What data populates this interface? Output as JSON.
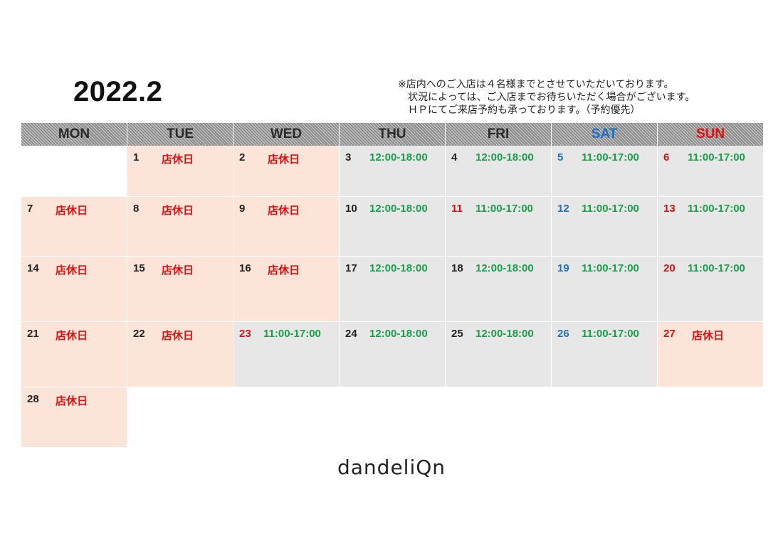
{
  "title": "2022.2",
  "notice": {
    "line1": "※店内へのご入店は４名様までとさせていただいております。",
    "line2": "　状況によっては、ご入店までお待ちいただく場合がございます。",
    "line3": "　ＨＰにてご来店予約も承っております。（予約優先）"
  },
  "weekdays": [
    "MON",
    "TUE",
    "WED",
    "THU",
    "FRI",
    "SAT",
    "SUN"
  ],
  "labels": {
    "closed": "店休日",
    "weekday_hours": "12:00-18:00",
    "weekend_hours": "11:00-17:00"
  },
  "weeks": [
    [
      {
        "day": "",
        "status": "empty",
        "text": ""
      },
      {
        "day": "1",
        "status": "closed",
        "text": "店休日",
        "color": "black"
      },
      {
        "day": "2",
        "status": "closed",
        "text": "店休日",
        "color": "black"
      },
      {
        "day": "3",
        "status": "open",
        "text": "12:00-18:00",
        "color": "black"
      },
      {
        "day": "4",
        "status": "open",
        "text": "12:00-18:00",
        "color": "black"
      },
      {
        "day": "5",
        "status": "open",
        "text": "11:00-17:00",
        "color": "blue"
      },
      {
        "day": "6",
        "status": "open",
        "text": "11:00-17:00",
        "color": "red"
      }
    ],
    [
      {
        "day": "7",
        "status": "closed",
        "text": "店休日",
        "color": "black"
      },
      {
        "day": "8",
        "status": "closed",
        "text": "店休日",
        "color": "black"
      },
      {
        "day": "9",
        "status": "closed",
        "text": "店休日",
        "color": "black"
      },
      {
        "day": "10",
        "status": "open",
        "text": "12:00-18:00",
        "color": "black"
      },
      {
        "day": "11",
        "status": "open",
        "text": "11:00-17:00",
        "color": "red"
      },
      {
        "day": "12",
        "status": "open",
        "text": "11:00-17:00",
        "color": "blue"
      },
      {
        "day": "13",
        "status": "open",
        "text": "11:00-17:00",
        "color": "red"
      }
    ],
    [
      {
        "day": "14",
        "status": "closed",
        "text": "店休日",
        "color": "black"
      },
      {
        "day": "15",
        "status": "closed",
        "text": "店休日",
        "color": "black"
      },
      {
        "day": "16",
        "status": "closed",
        "text": "店休日",
        "color": "black"
      },
      {
        "day": "17",
        "status": "open",
        "text": "12:00-18:00",
        "color": "black"
      },
      {
        "day": "18",
        "status": "open",
        "text": "12:00-18:00",
        "color": "black"
      },
      {
        "day": "19",
        "status": "open",
        "text": "11:00-17:00",
        "color": "blue"
      },
      {
        "day": "20",
        "status": "open",
        "text": "11:00-17:00",
        "color": "red"
      }
    ],
    [
      {
        "day": "21",
        "status": "closed",
        "text": "店休日",
        "color": "black"
      },
      {
        "day": "22",
        "status": "closed",
        "text": "店休日",
        "color": "black"
      },
      {
        "day": "23",
        "status": "open",
        "text": "11:00-17:00",
        "color": "red"
      },
      {
        "day": "24",
        "status": "open",
        "text": "12:00-18:00",
        "color": "black"
      },
      {
        "day": "25",
        "status": "open",
        "text": "12:00-18:00",
        "color": "black"
      },
      {
        "day": "26",
        "status": "open",
        "text": "11:00-17:00",
        "color": "blue"
      },
      {
        "day": "27",
        "status": "closed",
        "text": "店休日",
        "color": "red"
      }
    ],
    [
      {
        "day": "28",
        "status": "closed",
        "text": "店休日",
        "color": "black"
      }
    ]
  ],
  "colors": {
    "closed_bg": "#fce4d8",
    "open_bg": "#e7e7e7",
    "closed_text": "#e01010",
    "hours_text": "#18a048",
    "saturday": "#1f6fc2",
    "sunday_holiday": "#e01010"
  },
  "logo": "dandeliQn"
}
